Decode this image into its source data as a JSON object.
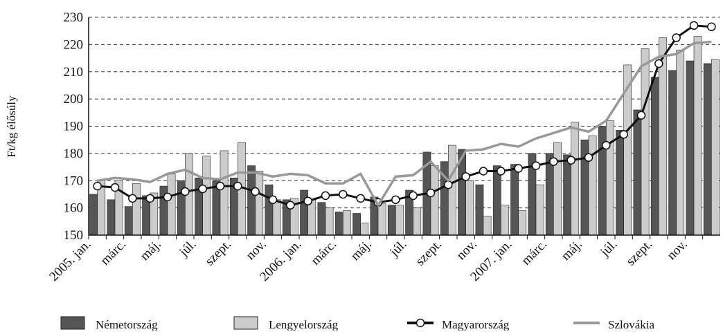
{
  "chart_data": {
    "type": "bar",
    "y_label": "Ft/kg élősúly",
    "categories": [
      "2005. jan.",
      null,
      "márc.",
      null,
      "máj.",
      null,
      "júl.",
      null,
      "szept.",
      null,
      "nov.",
      null,
      "2006. jan.",
      null,
      "márc.",
      null,
      "máj.",
      null,
      "júl.",
      null,
      "szept.",
      null,
      "nov.",
      null,
      "2007. jan.",
      null,
      "márc.",
      null,
      "máj.",
      null,
      "júl.",
      null,
      "szept.",
      null,
      "nov.",
      null
    ],
    "series": [
      {
        "name": "Németország",
        "kind": "bar",
        "color": "#555555",
        "values": [
          165,
          163,
          160.5,
          164.5,
          168,
          170,
          171,
          170,
          171,
          175.5,
          168.5,
          163,
          166.5,
          162,
          158.5,
          158,
          164,
          161,
          166.5,
          180.5,
          177,
          181.5,
          168.5,
          175.5,
          176,
          180,
          180,
          179.5,
          185,
          190,
          188.5,
          196,
          208,
          210.5,
          214,
          213
        ]
      },
      {
        "name": "Lengyelország",
        "kind": "bar",
        "color": "#cccccc",
        "values": [
          170,
          170,
          169,
          165.5,
          172.5,
          180,
          179,
          181,
          184,
          173.5,
          163,
          163.5,
          163,
          160,
          159,
          154.5,
          161.5,
          161,
          160,
          175.5,
          183,
          170,
          157,
          161,
          159,
          168.5,
          184,
          191.5,
          186.5,
          192,
          212.5,
          218.5,
          222.5,
          218,
          223,
          214.5
        ]
      },
      {
        "name": "Magyarország",
        "kind": "line",
        "color": "#111111",
        "values": [
          168,
          167.5,
          163.5,
          163.5,
          164,
          166,
          167,
          168,
          168,
          166,
          163,
          161,
          162.5,
          164.5,
          165,
          163.5,
          162,
          163,
          164.5,
          165.5,
          168.5,
          171.5,
          173.5,
          173.5,
          174.5,
          175.5,
          177,
          177.5,
          178.5,
          183,
          187,
          194,
          213,
          222.5,
          227,
          226.5
        ]
      },
      {
        "name": "Szlovákia",
        "kind": "line",
        "color": "#999999",
        "values": [
          170,
          171,
          170.5,
          169.5,
          172.5,
          174,
          171,
          170.5,
          173,
          173,
          171.5,
          172.5,
          172,
          169,
          169,
          172.5,
          161,
          171.5,
          172,
          177,
          170,
          181,
          181.5,
          183.5,
          182.5,
          185.5,
          187.5,
          189.5,
          188,
          192,
          202,
          212,
          215.5,
          216.5,
          220.5,
          221
        ]
      }
    ],
    "ylim": [
      150,
      230
    ],
    "yticks": [
      150,
      160,
      170,
      180,
      190,
      200,
      210,
      220,
      230
    ],
    "grid": true
  }
}
